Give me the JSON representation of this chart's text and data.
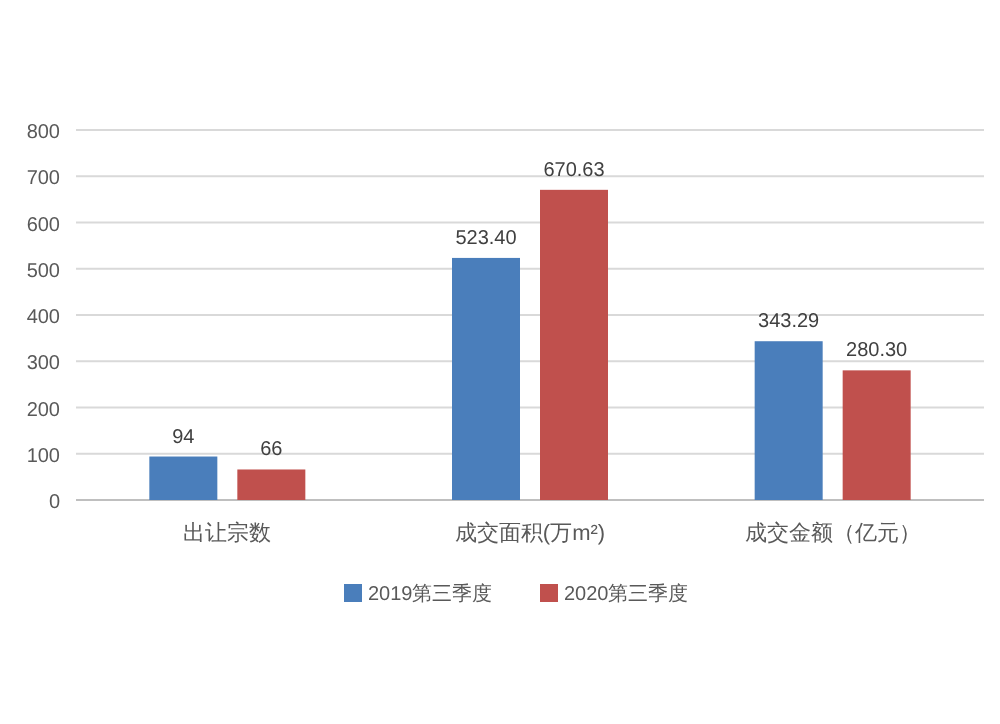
{
  "chart_data": {
    "type": "bar",
    "categories": [
      "出让宗数",
      "成交面积(万m²)",
      "成交金额（亿元）"
    ],
    "series": [
      {
        "name": "2019第三季度",
        "color": "#4a7ebb",
        "values": [
          94,
          523.4,
          343.29
        ],
        "value_labels": [
          "94",
          "523.40",
          "343.29"
        ]
      },
      {
        "name": "2020第三季度",
        "color": "#c0504d",
        "values": [
          66,
          670.63,
          280.3
        ],
        "value_labels": [
          "66",
          "670.63",
          "280.30"
        ]
      }
    ],
    "ylim": [
      0,
      800
    ],
    "yticks": [
      0,
      100,
      200,
      300,
      400,
      500,
      600,
      700,
      800
    ],
    "grid": "y",
    "legend": "bottom"
  }
}
